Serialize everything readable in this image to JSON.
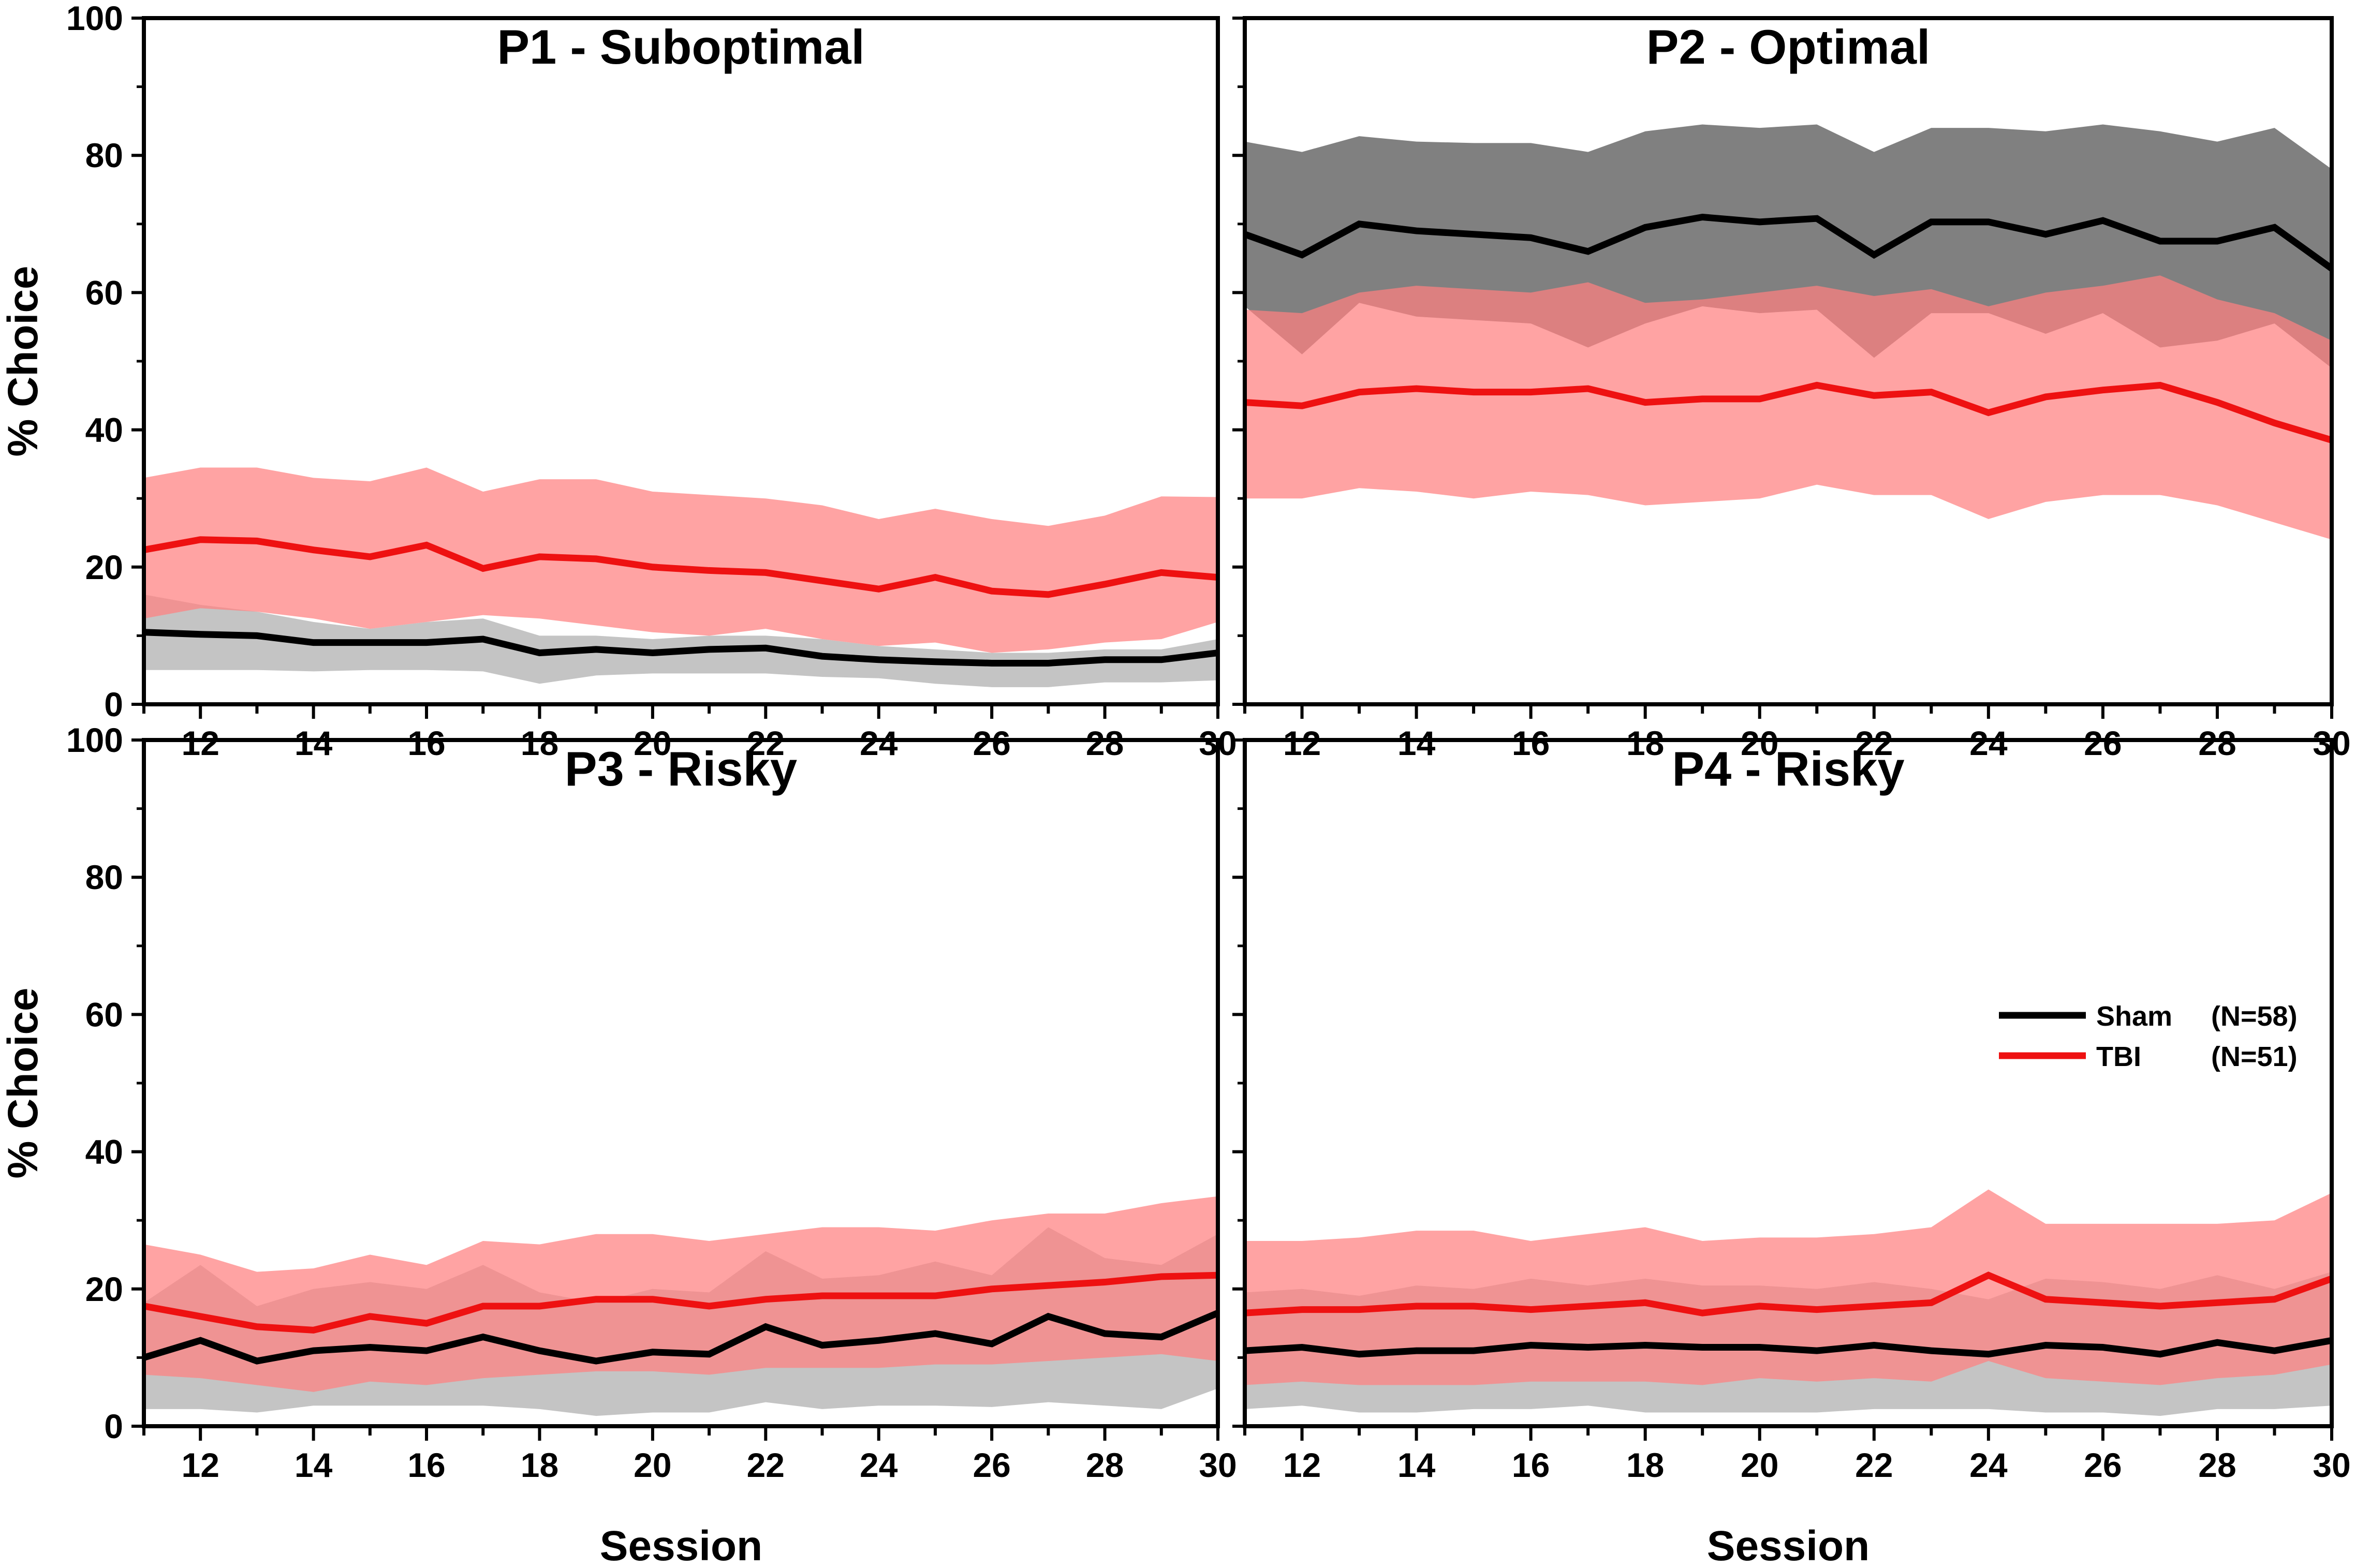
{
  "chart_data": [
    {
      "type": "line",
      "panel": "top-left",
      "title": "P1 - Suboptimal",
      "xlabel": "",
      "ylabel": "% Choice",
      "xlim": [
        11,
        30
      ],
      "ylim": [
        0,
        100
      ],
      "x": [
        11,
        12,
        13,
        14,
        15,
        16,
        17,
        18,
        19,
        20,
        21,
        22,
        23,
        24,
        25,
        26,
        27,
        28,
        29,
        30
      ],
      "series": [
        {
          "name": "Sham (N=58)",
          "color": "#000000",
          "band_color": "#c4c4c4",
          "values": [
            10.5,
            10.2,
            10,
            9,
            9,
            9,
            9.5,
            7.5,
            8,
            7.5,
            8,
            8.2,
            7,
            6.5,
            6.2,
            6,
            6,
            6.5,
            6.5,
            7.5
          ],
          "upper": [
            16,
            14.5,
            13.5,
            12,
            11,
            12,
            12.5,
            10,
            10,
            9.5,
            10,
            10,
            9.5,
            8.5,
            8,
            7.5,
            7.5,
            8,
            8,
            9.5
          ],
          "lower": [
            5,
            5,
            5,
            4.8,
            5,
            5,
            4.8,
            3,
            4.2,
            4.5,
            4.5,
            4.5,
            4,
            3.8,
            3,
            2.5,
            2.5,
            3.2,
            3.2,
            3.5
          ]
        },
        {
          "name": "TBI (N=51)",
          "color": "#ee1111",
          "band_color": "#ff7f7f",
          "values": [
            22.5,
            24,
            23.8,
            22.5,
            21.5,
            23.2,
            19.8,
            21.5,
            21.2,
            20,
            19.5,
            19.2,
            18,
            16.8,
            18.5,
            16.5,
            16,
            17.5,
            19.2,
            18.5
          ],
          "upper": [
            33,
            34.5,
            34.5,
            33,
            32.5,
            34.5,
            31,
            32.8,
            32.8,
            31,
            30.5,
            30,
            29,
            27,
            28.5,
            27,
            26,
            27.5,
            30.3,
            30.2
          ],
          "lower": [
            12.5,
            14,
            13.5,
            12.5,
            11,
            12,
            13,
            12.5,
            11.5,
            10.5,
            10,
            11,
            9.5,
            8.5,
            9,
            7.5,
            8,
            9,
            9.5,
            12
          ]
        }
      ],
      "shared_xticks": [
        "12",
        "14",
        "16",
        "18",
        "20",
        "22",
        "24",
        "26",
        "28",
        "30"
      ],
      "yticks": [
        "0",
        "20",
        "40",
        "60",
        "80",
        "100"
      ]
    },
    {
      "type": "line",
      "panel": "top-right",
      "title": "P2 - Optimal",
      "xlabel": "",
      "ylabel": "",
      "xlim": [
        11,
        30
      ],
      "ylim": [
        0,
        100
      ],
      "x": [
        11,
        12,
        13,
        14,
        15,
        16,
        17,
        18,
        19,
        20,
        21,
        22,
        23,
        24,
        25,
        26,
        27,
        28,
        29,
        30
      ],
      "series": [
        {
          "name": "Sham (N=58)",
          "color": "#000000",
          "band_color": "#808080",
          "values": [
            68.5,
            65.5,
            70,
            69,
            68.5,
            68,
            66,
            69.5,
            71,
            70.3,
            70.8,
            65.5,
            70.3,
            70.3,
            68.5,
            70.5,
            67.5,
            67.5,
            69.5,
            63.5
          ],
          "upper": [
            82,
            80.5,
            82.8,
            82,
            81.8,
            81.8,
            80.5,
            83.5,
            84.5,
            84,
            84.5,
            80.5,
            84,
            84,
            83.5,
            84.5,
            83.5,
            82,
            84,
            78
          ],
          "lower": [
            58,
            51,
            58.5,
            56.5,
            56,
            55.5,
            52,
            55.5,
            58,
            57,
            57.5,
            50.5,
            57,
            57,
            54,
            57,
            52,
            53,
            55.5,
            49
          ]
        },
        {
          "name": "TBI (N=51)",
          "color": "#ee1111",
          "band_color": "#ff7f7f",
          "values": [
            44,
            43.5,
            45.5,
            46,
            45.5,
            45.5,
            46,
            44,
            44.5,
            44.5,
            46.5,
            45,
            45.5,
            42.5,
            44.8,
            45.8,
            46.5,
            44,
            41,
            38.5
          ],
          "upper": [
            57.5,
            57,
            60,
            61,
            60.5,
            60,
            61.5,
            58.5,
            59,
            60,
            61,
            59.5,
            60.5,
            58,
            60,
            61,
            62.5,
            59,
            57,
            53
          ],
          "lower": [
            30,
            30,
            31.5,
            31,
            30,
            31,
            30.5,
            29,
            29.5,
            30,
            32,
            30.5,
            30.5,
            27,
            29.5,
            30.5,
            30.5,
            29,
            26.5,
            24
          ]
        }
      ],
      "yticks": [
        "0",
        "20",
        "40",
        "60",
        "80",
        "100"
      ]
    },
    {
      "type": "line",
      "panel": "bottom-left",
      "title": "P3 - Risky",
      "xlabel": "Session",
      "ylabel": "% Choice",
      "xlim": [
        11,
        30
      ],
      "ylim": [
        0,
        100
      ],
      "x": [
        11,
        12,
        13,
        14,
        15,
        16,
        17,
        18,
        19,
        20,
        21,
        22,
        23,
        24,
        25,
        26,
        27,
        28,
        29,
        30
      ],
      "series": [
        {
          "name": "Sham (N=58)",
          "color": "#000000",
          "band_color": "#c4c4c4",
          "values": [
            10,
            12.5,
            9.5,
            11,
            11.5,
            11,
            13,
            11,
            9.5,
            10.8,
            10.5,
            14.5,
            11.8,
            12.5,
            13.5,
            12,
            16,
            13.5,
            13,
            16.5
          ],
          "upper": [
            18,
            23.5,
            17.5,
            20,
            21,
            20,
            23.5,
            19.5,
            18,
            20,
            19.5,
            25.5,
            21.5,
            22,
            24,
            22,
            29,
            24.5,
            23.5,
            28
          ],
          "lower": [
            2.5,
            2.5,
            2,
            3,
            3,
            3,
            3,
            2.5,
            1.5,
            2,
            2,
            3.5,
            2.5,
            3,
            3,
            2.8,
            3.5,
            3,
            2.5,
            5.5
          ]
        },
        {
          "name": "TBI (N=51)",
          "color": "#ee1111",
          "band_color": "#ff7f7f",
          "values": [
            17.5,
            16,
            14.5,
            14,
            16,
            15,
            17.5,
            17.5,
            18.5,
            18.5,
            17.5,
            18.5,
            19,
            19,
            19,
            20,
            20.5,
            21,
            21.8,
            22
          ],
          "upper": [
            26.5,
            25,
            22.5,
            23,
            25,
            23.5,
            27,
            26.5,
            28,
            28,
            27,
            28,
            29,
            29,
            28.5,
            30,
            31,
            31,
            32.5,
            33.5
          ],
          "lower": [
            7.5,
            7,
            6,
            5,
            6.5,
            6,
            7,
            7.5,
            8,
            8,
            7.5,
            8.5,
            8.5,
            8.5,
            9,
            9,
            9.5,
            10,
            10.5,
            9.5
          ]
        }
      ],
      "shared_xticks": [
        "12",
        "14",
        "16",
        "18",
        "20",
        "22",
        "24",
        "26",
        "28",
        "30"
      ],
      "yticks": [
        "0",
        "20",
        "40",
        "60",
        "80",
        "100"
      ]
    },
    {
      "type": "line",
      "panel": "bottom-right",
      "title": "P4 - Risky",
      "xlabel": "Session",
      "ylabel": "",
      "xlim": [
        11,
        30
      ],
      "ylim": [
        0,
        100
      ],
      "x": [
        11,
        12,
        13,
        14,
        15,
        16,
        17,
        18,
        19,
        20,
        21,
        22,
        23,
        24,
        25,
        26,
        27,
        28,
        29,
        30
      ],
      "series": [
        {
          "name": "Sham (N=58)",
          "color": "#000000",
          "band_color": "#c4c4c4",
          "values": [
            11,
            11.5,
            10.5,
            11,
            11,
            11.8,
            11.5,
            11.8,
            11.5,
            11.5,
            11,
            11.8,
            11,
            10.5,
            11.8,
            11.5,
            10.5,
            12.2,
            11,
            12.5
          ],
          "upper": [
            19.5,
            20,
            19,
            20.5,
            20,
            21.5,
            20.5,
            21.5,
            20.5,
            20.5,
            20,
            21,
            20,
            18.5,
            21.5,
            21,
            20,
            22,
            20,
            22.5
          ],
          "lower": [
            2.5,
            3,
            2,
            2,
            2.5,
            2.5,
            3,
            2,
            2,
            2,
            2,
            2.5,
            2.5,
            2.5,
            2,
            2,
            1.5,
            2.5,
            2.5,
            3
          ]
        },
        {
          "name": "TBI (N=51)",
          "color": "#ee1111",
          "band_color": "#ff7f7f",
          "values": [
            16.5,
            17,
            17,
            17.5,
            17.5,
            17,
            17.5,
            18,
            16.5,
            17.5,
            17,
            17.5,
            18,
            22,
            18.5,
            18,
            17.5,
            18,
            18.5,
            21.5
          ],
          "upper": [
            27,
            27,
            27.5,
            28.5,
            28.5,
            27,
            28,
            29,
            27,
            27.5,
            27.5,
            28,
            29,
            34.5,
            29.5,
            29.5,
            29.5,
            29.5,
            30,
            34
          ],
          "lower": [
            6,
            6.5,
            6,
            6,
            6,
            6.5,
            6.5,
            6.5,
            6,
            7,
            6.5,
            7,
            6.5,
            9.5,
            7,
            6.5,
            6,
            7,
            7.5,
            9
          ]
        }
      ],
      "shared_xticks": [
        "12",
        "14",
        "16",
        "18",
        "20",
        "22",
        "24",
        "26",
        "28",
        "30"
      ],
      "yticks": [
        "0",
        "20",
        "40",
        "60",
        "80",
        "100"
      ]
    }
  ],
  "legend": {
    "placement": "right, bottom-right panel",
    "entries": [
      {
        "name": "Sham",
        "n": "(N=58)",
        "color": "#000000"
      },
      {
        "name": "TBI",
        "n": "(N=51)",
        "color": "#ee1111"
      }
    ]
  }
}
